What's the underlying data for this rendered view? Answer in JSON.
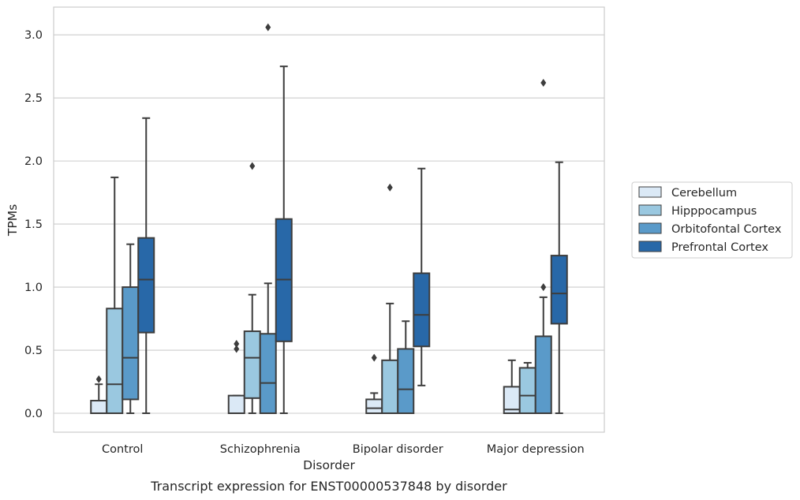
{
  "caption": "Transcript expression for ENST00000537848 by disorder",
  "chart_data": {
    "type": "box",
    "xlabel": "Disorder",
    "ylabel": "TPMs",
    "ylim": [
      -0.15,
      3.22
    ],
    "yticks": [
      "0.0",
      "0.5",
      "1.0",
      "1.5",
      "2.0",
      "2.5",
      "3.0"
    ],
    "ytick_values": [
      0,
      0.5,
      1.0,
      1.5,
      2.0,
      2.5,
      3.0
    ],
    "grid": true,
    "legend_position": "right",
    "categories": [
      "Control",
      "Schizophrenia",
      "Bipolar disorder",
      "Major depression"
    ],
    "series": [
      {
        "name": "Cerebellum",
        "color": "#dbe9f6",
        "boxes": [
          {
            "whislo": 0,
            "q1": 0,
            "med": 0,
            "q3": 0.1,
            "whishi": 0.23,
            "fliers": [
              0.27
            ]
          },
          {
            "whislo": 0,
            "q1": 0,
            "med": 0,
            "q3": 0.14,
            "whishi": 0.14,
            "fliers": [
              0.51,
              0.55
            ]
          },
          {
            "whislo": 0,
            "q1": 0,
            "med": 0.04,
            "q3": 0.11,
            "whishi": 0.16,
            "fliers": [
              0.44
            ]
          },
          {
            "whislo": 0,
            "q1": 0,
            "med": 0.03,
            "q3": 0.21,
            "whishi": 0.42,
            "fliers": []
          }
        ]
      },
      {
        "name": "Hipppocampus",
        "color": "#9ac8e0",
        "boxes": [
          {
            "whislo": 0,
            "q1": 0,
            "med": 0.23,
            "q3": 0.83,
            "whishi": 1.87,
            "fliers": []
          },
          {
            "whislo": 0,
            "q1": 0.12,
            "med": 0.44,
            "q3": 0.65,
            "whishi": 0.94,
            "fliers": [
              1.96
            ]
          },
          {
            "whislo": 0,
            "q1": 0,
            "med": 0,
            "q3": 0.42,
            "whishi": 0.87,
            "fliers": [
              1.79
            ]
          },
          {
            "whislo": 0,
            "q1": 0,
            "med": 0.14,
            "q3": 0.36,
            "whishi": 0.4,
            "fliers": []
          }
        ]
      },
      {
        "name": "Orbitofontal Cortex",
        "color": "#5a9ac9",
        "boxes": [
          {
            "whislo": 0,
            "q1": 0.11,
            "med": 0.44,
            "q3": 1.0,
            "whishi": 1.34,
            "fliers": []
          },
          {
            "whislo": 0,
            "q1": 0,
            "med": 0.24,
            "q3": 0.63,
            "whishi": 1.03,
            "fliers": [
              3.06
            ]
          },
          {
            "whislo": 0,
            "q1": 0,
            "med": 0.19,
            "q3": 0.51,
            "whishi": 0.73,
            "fliers": []
          },
          {
            "whislo": 0,
            "q1": 0,
            "med": 0,
            "q3": 0.61,
            "whishi": 0.92,
            "fliers": [
              1.0,
              2.62
            ]
          }
        ]
      },
      {
        "name": "Prefrontal Cortex",
        "color": "#2868a8",
        "boxes": [
          {
            "whislo": 0,
            "q1": 0.64,
            "med": 1.06,
            "q3": 1.39,
            "whishi": 2.34,
            "fliers": []
          },
          {
            "whislo": 0,
            "q1": 0.57,
            "med": 1.06,
            "q3": 1.54,
            "whishi": 2.75,
            "fliers": []
          },
          {
            "whislo": 0.22,
            "q1": 0.53,
            "med": 0.78,
            "q3": 1.11,
            "whishi": 1.94,
            "fliers": []
          },
          {
            "whislo": 0,
            "q1": 0.71,
            "med": 0.95,
            "q3": 1.25,
            "whishi": 1.99,
            "fliers": []
          }
        ]
      }
    ]
  }
}
